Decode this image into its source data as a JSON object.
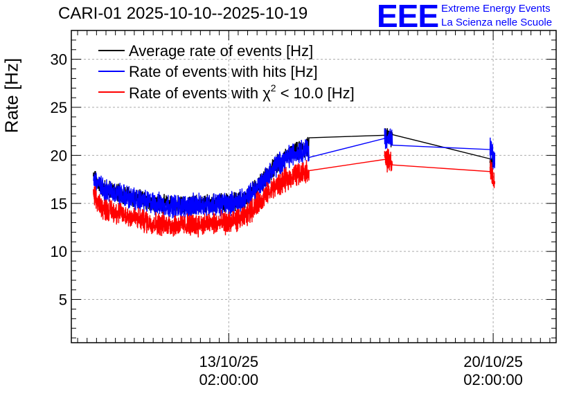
{
  "header": {
    "title": "CARI-01 2025-10-10--2025-10-19",
    "logo_text": "EEE",
    "logo_line1": "Extreme Energy Events",
    "logo_line2": "La Scienza nelle Scuole",
    "logo_color": "#0000ff"
  },
  "chart_data": {
    "type": "line",
    "title": "CARI-01 2025-10-10--2025-10-19",
    "ylabel": "Rate [Hz]",
    "xlabel": "",
    "ylim": [
      0.5,
      33
    ],
    "yticks": [
      "5",
      "10",
      "15",
      "20",
      "25",
      "30"
    ],
    "xlim_hours": [
      -100,
      208
    ],
    "xticks": [
      {
        "hours": 0,
        "date": "13/10/25",
        "time": "02:00:00"
      },
      {
        "hours": 168,
        "date": "20/10/25",
        "time": "02:00:00"
      }
    ],
    "grid": true,
    "legend_position": "top-left",
    "x_hours": [
      -86,
      -80,
      -70,
      -60,
      -50,
      -40,
      -30,
      -20,
      -10,
      0,
      10,
      20,
      30,
      40,
      50,
      51,
      100,
      104,
      167,
      168,
      169
    ],
    "series": [
      {
        "name": "Average rate of events [Hz]",
        "color": "#000000",
        "values": [
          17.7,
          16.6,
          16.1,
          15.5,
          15.2,
          14.9,
          14.8,
          14.9,
          15.0,
          15.1,
          15.4,
          17.1,
          19.0,
          20.2,
          20.8,
          21.3,
          22.1,
          21.8,
          19.6,
          19.4,
          19.2
        ],
        "noise": 0.8
      },
      {
        "name": "Rate of events with hits [Hz]",
        "color": "#0000ff",
        "values": [
          17.6,
          16.5,
          16.0,
          15.4,
          15.1,
          14.8,
          14.7,
          14.8,
          14.9,
          15.0,
          15.3,
          17.0,
          18.9,
          20.1,
          20.7,
          20.4,
          21.8,
          21.5,
          20.6,
          19.6,
          19.3
        ],
        "noise": 1.0
      },
      {
        "name": "Rate of events with χ² < 10.0 [Hz]",
        "color": "#ff0000",
        "values": [
          15.7,
          14.5,
          14.0,
          13.5,
          13.0,
          12.8,
          12.7,
          12.8,
          12.9,
          13.0,
          13.5,
          15.3,
          16.8,
          17.8,
          18.4,
          18.4,
          19.6,
          19.2,
          18.3,
          17.4,
          17.2
        ],
        "noise": 1.0
      }
    ],
    "legend_labels": {
      "average": "Average rate of events [Hz]",
      "hits": "Rate of events with hits [Hz]",
      "chi_prefix": "Rate of events with ",
      "chi_symbol": "χ",
      "chi_exp": "2",
      "chi_suffix": " < 10.0 [Hz]"
    }
  }
}
